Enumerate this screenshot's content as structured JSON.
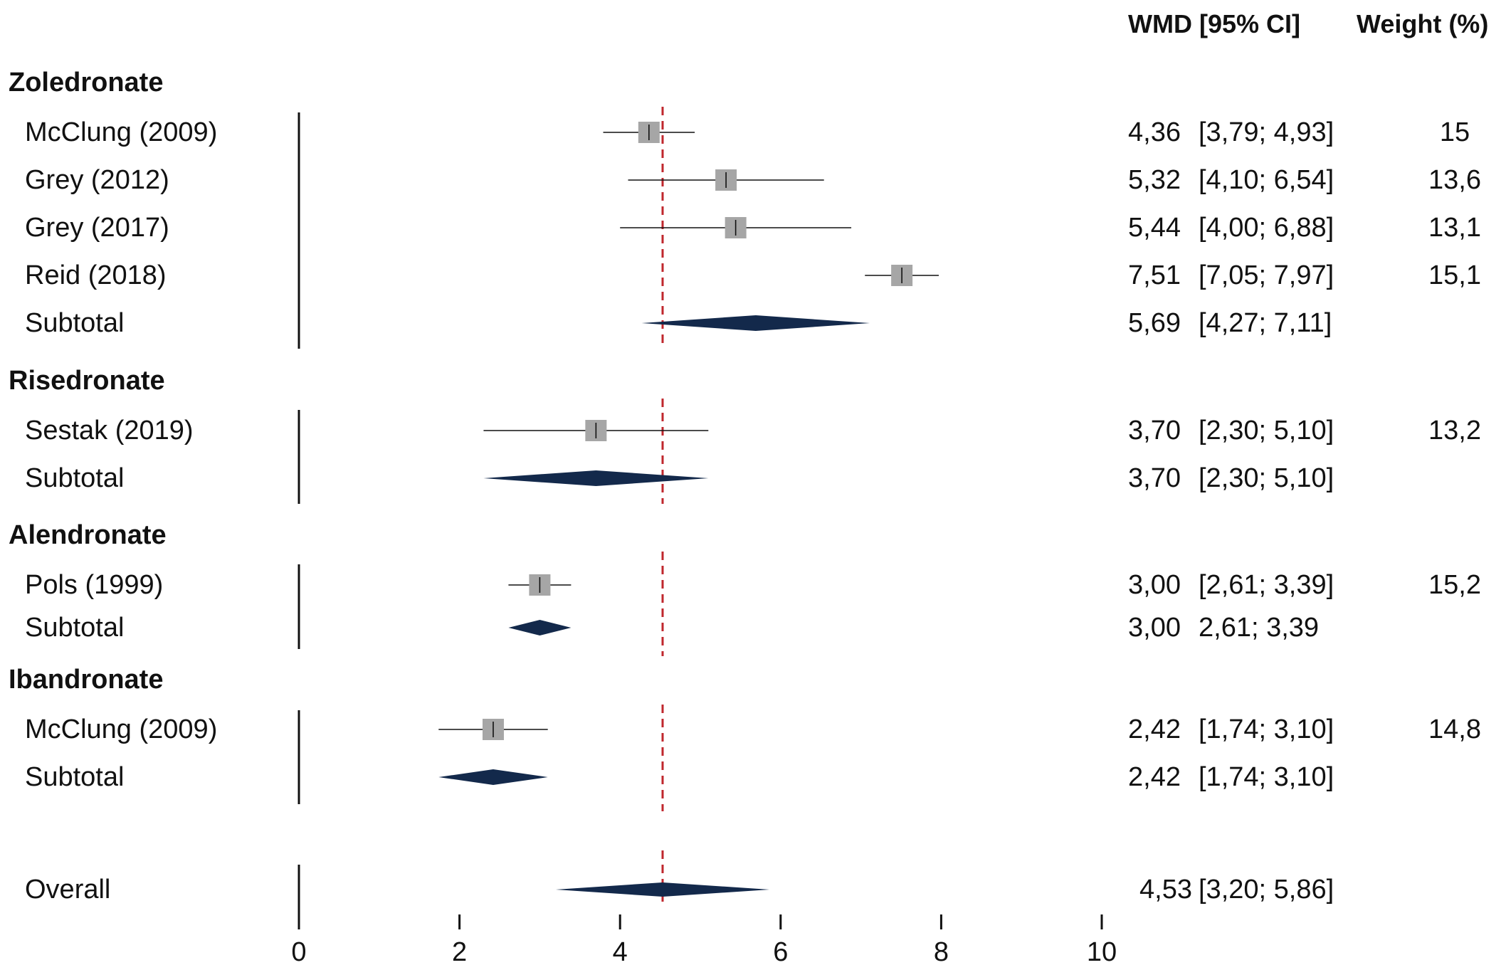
{
  "chart_data": {
    "type": "forest",
    "columns": {
      "effect_header": "WMD [95% CI]",
      "weight_header": "Weight (%)"
    },
    "xlim": [
      0,
      10
    ],
    "xticks": [
      {
        "value": 0,
        "label": "0"
      },
      {
        "value": 2,
        "label": "2"
      },
      {
        "value": 4,
        "label": "4"
      },
      {
        "value": 6,
        "label": "6"
      },
      {
        "value": 8,
        "label": "8"
      },
      {
        "value": 10,
        "label": "10"
      }
    ],
    "overall_line": 4.53,
    "colors": {
      "study_box": "#a6a6a6",
      "diamond": "#13294b",
      "reference_line": "#c0272d",
      "text": "#111111"
    },
    "groups": [
      {
        "name": "Zoledronate",
        "studies": [
          {
            "label": "McClung (2009)",
            "est": 4.36,
            "lo": 3.79,
            "hi": 4.93,
            "ci_text": "4,36",
            "range_text": "[3,79; 4,93]",
            "weight_text": "15"
          },
          {
            "label": "Grey (2012)",
            "est": 5.32,
            "lo": 4.1,
            "hi": 6.54,
            "ci_text": "5,32",
            "range_text": "[4,10; 6,54]",
            "weight_text": "13,6"
          },
          {
            "label": "Grey (2017)",
            "est": 5.44,
            "lo": 4.0,
            "hi": 6.88,
            "ci_text": "5,44",
            "range_text": "[4,00; 6,88]",
            "weight_text": "13,1"
          },
          {
            "label": "Reid (2018)",
            "est": 7.51,
            "lo": 7.05,
            "hi": 7.97,
            "ci_text": "7,51",
            "range_text": "[7,05; 7,97]",
            "weight_text": "15,1"
          }
        ],
        "subtotal": {
          "label": "Subtotal",
          "est": 5.69,
          "lo": 4.27,
          "hi": 7.11,
          "ci_text": "5,69",
          "range_text": "[4,27; 7,11]"
        }
      },
      {
        "name": "Risedronate",
        "studies": [
          {
            "label": "Sestak (2019)",
            "est": 3.7,
            "lo": 2.3,
            "hi": 5.1,
            "ci_text": "3,70",
            "range_text": "[2,30; 5,10]",
            "weight_text": "13,2"
          }
        ],
        "subtotal": {
          "label": "Subtotal",
          "est": 3.7,
          "lo": 2.3,
          "hi": 5.1,
          "ci_text": "3,70",
          "range_text": "[2,30; 5,10]"
        }
      },
      {
        "name": "Alendronate",
        "studies": [
          {
            "label": "Pols (1999)",
            "est": 3.0,
            "lo": 2.61,
            "hi": 3.39,
            "ci_text": "3,00",
            "range_text": "[2,61; 3,39]",
            "weight_text": "15,2"
          }
        ],
        "subtotal": {
          "label": "Subtotal",
          "est": 3.0,
          "lo": 2.61,
          "hi": 3.39,
          "ci_text": "3,00",
          "range_text": "2,61; 3,39"
        }
      },
      {
        "name": "Ibandronate",
        "studies": [
          {
            "label": "McClung (2009)",
            "est": 2.42,
            "lo": 1.74,
            "hi": 3.1,
            "ci_text": "2,42",
            "range_text": "[1,74; 3,10]",
            "weight_text": "14,8"
          }
        ],
        "subtotal": {
          "label": "Subtotal",
          "est": 2.42,
          "lo": 1.74,
          "hi": 3.1,
          "ci_text": "2,42",
          "range_text": "[1,74; 3,10]"
        }
      }
    ],
    "overall": {
      "label": "Overall",
      "est": 4.53,
      "lo": 3.2,
      "hi": 5.86,
      "ci_text": "4,53",
      "range_text": "[3,20; 5,86]"
    }
  }
}
